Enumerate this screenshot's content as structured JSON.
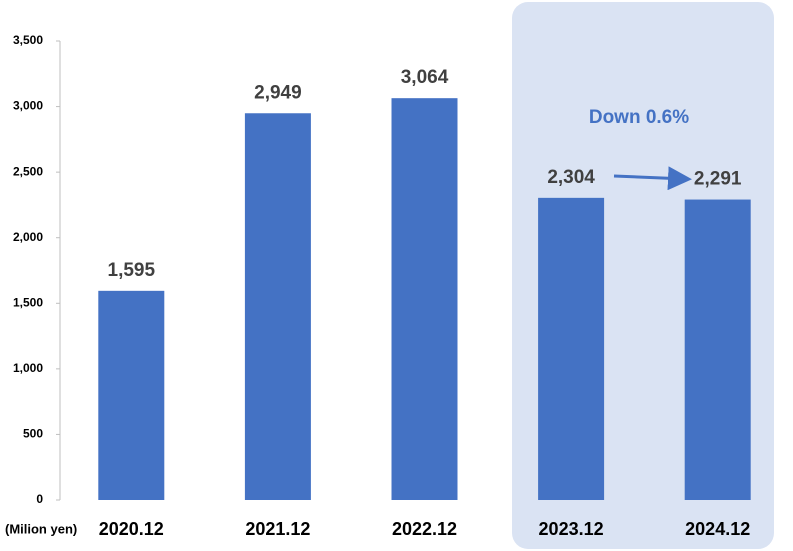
{
  "chart_data": {
    "type": "bar",
    "unit_label": "(Milion yen)",
    "annotation": "Down 0.6%",
    "categories": [
      "2020.12",
      "2021.12",
      "2022.12",
      "2023.12",
      "2024.12"
    ],
    "values": [
      1595,
      2949,
      3064,
      2304,
      2291
    ],
    "value_labels": [
      "1,595",
      "2,949",
      "3,064",
      "2,304",
      "2,291"
    ],
    "color": "#4472c4",
    "ylim": [
      0,
      3500
    ],
    "yticks": [
      0,
      500,
      {
        "value": 1000,
        "label": "1,000"
      },
      {
        "value": 1500,
        "label": "1,500"
      },
      {
        "value": 2000,
        "label": "2,000"
      },
      {
        "value": 2500,
        "label": "2,500"
      },
      {
        "value": 3000,
        "label": "3,000"
      },
      {
        "value": 3500,
        "label": "3,500"
      }
    ],
    "grid": false
  }
}
